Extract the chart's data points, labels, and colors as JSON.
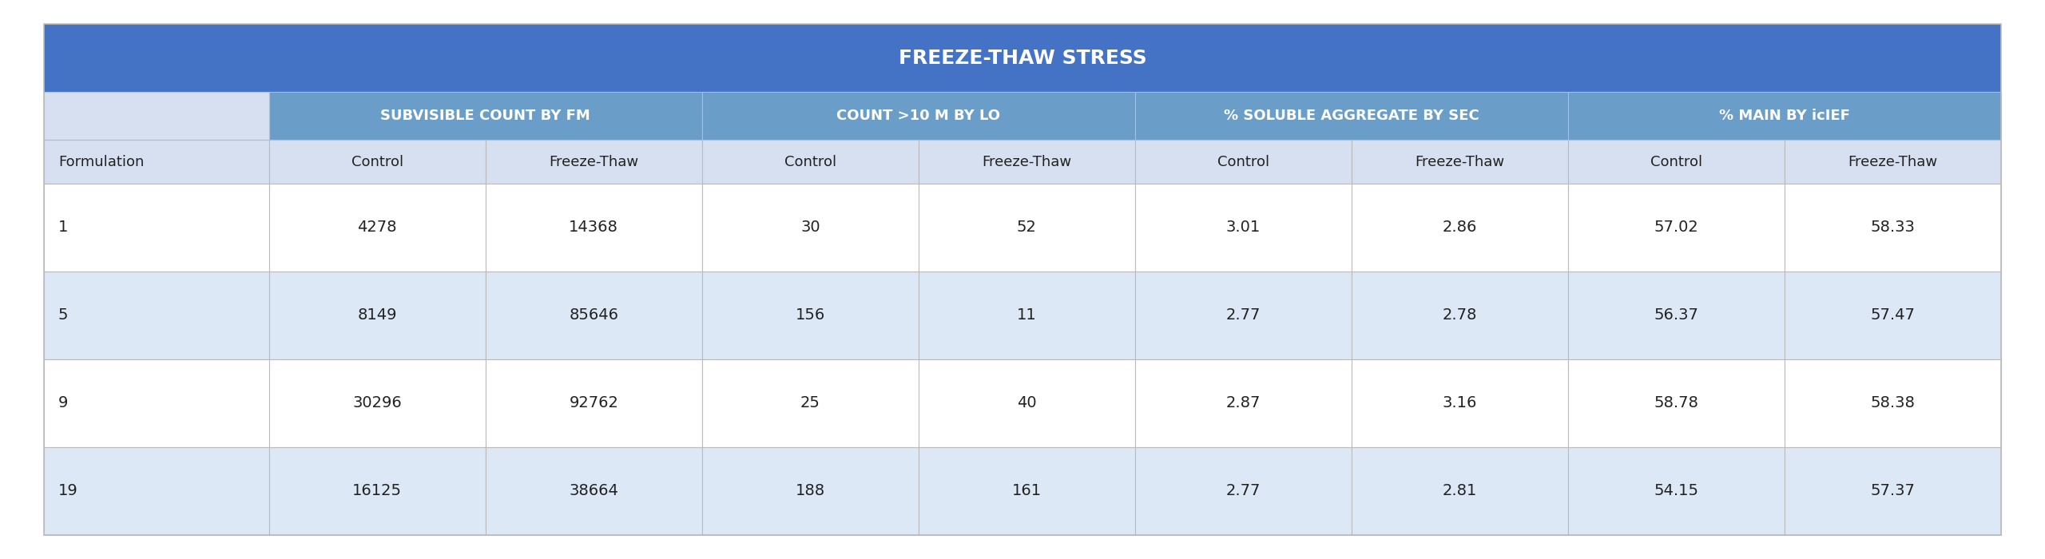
{
  "title": "FREEZE-THAW STRESS",
  "title_bg": "#4472C4",
  "title_color": "#FFFFFF",
  "subheader_bg": "#6B9DC9",
  "subheader_color": "#FFFFFF",
  "col_header_bg": "#D6E0F0",
  "col_header_color": "#222222",
  "row_alt_bg": "#DCE8F5",
  "row_white_bg": "#FFFFFF",
  "border_color": "#BBBBBB",
  "text_color": "#222222",
  "col_groups": [
    {
      "label": "SUBVISIBLE COUNT BY FM",
      "span": 2
    },
    {
      "label": "COUNT >10 M BY LO",
      "span": 2
    },
    {
      "label": "% SOLUBLE AGGREGATE BY SEC",
      "span": 2
    },
    {
      "label": "% MAIN BY icIEF",
      "span": 2
    }
  ],
  "col_headers": [
    "Formulation",
    "Control",
    "Freeze-Thaw",
    "Control",
    "Freeze-Thaw",
    "Control",
    "Freeze-Thaw",
    "Control",
    "Freeze-Thaw"
  ],
  "rows": [
    [
      "1",
      "4278",
      "14368",
      "30",
      "52",
      "3.01",
      "2.86",
      "57.02",
      "58.33"
    ],
    [
      "5",
      "8149",
      "85646",
      "156",
      "11",
      "2.77",
      "2.78",
      "56.37",
      "57.47"
    ],
    [
      "9",
      "30296",
      "92762",
      "25",
      "40",
      "2.87",
      "3.16",
      "58.78",
      "58.38"
    ],
    [
      "19",
      "16125",
      "38664",
      "188",
      "161",
      "2.77",
      "2.81",
      "54.15",
      "57.37"
    ]
  ],
  "fig_width": 25.6,
  "fig_height": 7.0,
  "dpi": 100
}
